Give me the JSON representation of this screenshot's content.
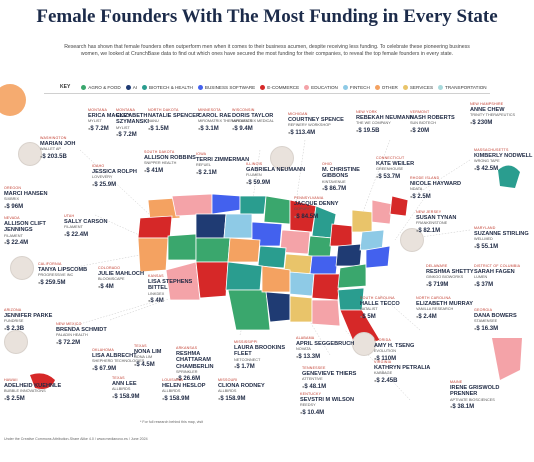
{
  "title": "Female Founders With The Most Funding in Every State",
  "subtitle": "Research has shown that female founders often outperform men when it comes to their business acumen, despite receiving less funding. To celebrate these pioneering business women, we looked at CrunchBase data to find out which ones have secured the most funding for their companies, to reveal the top female founders in every state.",
  "legend": {
    "key_label": "KEY",
    "items": [
      {
        "label": "AGRO & FOOD",
        "color": "#3aa76d"
      },
      {
        "label": "AI",
        "color": "#1f3b73"
      },
      {
        "label": "BIOTECH & HEALTH",
        "color": "#2a9d8f"
      },
      {
        "label": "BUSINESS SOFTWARE",
        "color": "#4361ee"
      },
      {
        "label": "E-COMMERCE",
        "color": "#d62828"
      },
      {
        "label": "EDUCATION",
        "color": "#f4a3a8"
      },
      {
        "label": "FINTECH",
        "color": "#8ecae6"
      },
      {
        "label": "OTHER",
        "color": "#f4a261"
      },
      {
        "label": "SERVICES",
        "color": "#e9c46a"
      },
      {
        "label": "TRANSPORTATION",
        "color": "#a8dadc"
      }
    ]
  },
  "founders": [
    {
      "id": "wa",
      "state": "Washington",
      "name": "Marian Joh",
      "company": "Wallet Ap",
      "amount": "$ 203.5B"
    },
    {
      "id": "mt1",
      "state": "Montana",
      "name": "Erica Mackey",
      "company": "Mylist",
      "amount": "$ 7.2M"
    },
    {
      "id": "mt2",
      "state": "Montana",
      "name": "Elizabeth Szymanski",
      "company": "Mylist",
      "amount": "$ 7.2M"
    },
    {
      "id": "nd",
      "state": "North Dakota",
      "name": "Natalie Spencer",
      "company": "Nanu",
      "amount": "$ 1.5M"
    },
    {
      "id": "mn",
      "state": "Minnesota",
      "name": "Carol Rae",
      "company": "Miromatrix Therapeutics",
      "amount": "$ 3.1M"
    },
    {
      "id": "wi",
      "state": "Wisconsin",
      "name": "Doris Taylor",
      "company": "Miromatrix Medical",
      "amount": "$ 9.4M"
    },
    {
      "id": "mi",
      "state": "Michigan",
      "name": "Courtney Spence",
      "company": "Refinery Workshop",
      "amount": "$ 113.4M"
    },
    {
      "id": "ny",
      "state": "New York",
      "name": "Rebekah Neumann",
      "company": "The WE Company",
      "amount": "$ 19.5B"
    },
    {
      "id": "vt",
      "state": "Vermont",
      "name": "Nash Roberts",
      "company": "Sun Biotech",
      "amount": "$ 20M"
    },
    {
      "id": "nh",
      "state": "New Hampshire",
      "name": "Anne Chew",
      "company": "Trinity Therapeutics",
      "amount": "$ 230M"
    },
    {
      "id": "or",
      "state": "Oregon",
      "name": "Marci Hansen",
      "company": "Sixbrix",
      "amount": "$ 96M"
    },
    {
      "id": "id",
      "state": "Idaho",
      "name": "Jessica Rolph",
      "company": "Lovevery",
      "amount": "$ 25.9M"
    },
    {
      "id": "sd",
      "state": "South Dakota",
      "name": "Allison Robbins",
      "company": "Snipper Health",
      "amount": "$ 41M"
    },
    {
      "id": "ia",
      "state": "Iowa",
      "name": "Terri Zimmerman",
      "company": "Refuel",
      "amount": "$ 2.1M"
    },
    {
      "id": "il",
      "state": "Illinois",
      "name": "Gabriela Neumann",
      "company": "Flumen",
      "amount": "$ 59.9M"
    },
    {
      "id": "oh",
      "state": "Ohio",
      "name": "M. Christine Gibbons",
      "company": "Kintavenue",
      "amount": "$ 86.7M"
    },
    {
      "id": "pa",
      "state": "Pennsylvania",
      "name": "Jacque Denny",
      "company": "Gopuff",
      "amount": "$ 84.5M"
    },
    {
      "id": "ct",
      "state": "Connecticut",
      "name": "Kate Weiler",
      "company": "Greenhouse",
      "amount": "$ 53.7M"
    },
    {
      "id": "ri",
      "state": "Rhode Island",
      "name": "Nicole Hayward",
      "company": "Ndata",
      "amount": "$ 2.5M"
    },
    {
      "id": "ma",
      "state": "Massachusetts",
      "name": "Kimberly Nodwell",
      "company": "Wrong Tape",
      "amount": "$ 42.5M"
    },
    {
      "id": "nv",
      "state": "Nevada",
      "name": "Allison Clift Jennings",
      "company": "Filament",
      "amount": "$ 22.4M"
    },
    {
      "id": "ut",
      "state": "Utah",
      "name": "Sally Carson",
      "company": "Filament",
      "amount": "$ 22.4M"
    },
    {
      "id": "nj",
      "state": "New Jersey",
      "name": "Susan Tynan",
      "company": "Frankenstone",
      "amount": "$ 82.1M"
    },
    {
      "id": "md",
      "state": "Maryland",
      "name": "Suzanne Stirling",
      "company": "Wellmed",
      "amount": "$ 55.1M"
    },
    {
      "id": "ca",
      "state": "California",
      "name": "Tanya Lipscomb",
      "company": "Progressive Inc",
      "amount": "$ 259.5M"
    },
    {
      "id": "co",
      "state": "Colorado",
      "name": "Julie Mahloch",
      "company": "Bloomscape",
      "amount": "$ 4M"
    },
    {
      "id": "ks",
      "state": "Kansas",
      "name": "Lisa Stephens Bittel",
      "company": "Linkdex",
      "amount": "$ 4M"
    },
    {
      "id": "de",
      "state": "Delaware",
      "name": "Reshma Shetty",
      "company": "Ginkgo Bioworks",
      "amount": "$ 719M"
    },
    {
      "id": "dc",
      "state": "District of Columbia",
      "name": "Sarah Fagen",
      "company": "Lumen",
      "amount": "$ 37M"
    },
    {
      "id": "az",
      "state": "Arizona",
      "name": "Jennifer Parke",
      "company": "Fundrise",
      "amount": "$ 2.3B"
    },
    {
      "id": "nm",
      "state": "New Mexico",
      "name": "Brenda Schmidt",
      "company": "Paladin Health",
      "amount": "$ 72.2M"
    },
    {
      "id": "sc",
      "state": "South Carolina",
      "name": "Halle Tecco",
      "company": "Natalist",
      "amount": "$ 5M"
    },
    {
      "id": "nc",
      "state": "North Carolina",
      "name": "Elizabeth Murray",
      "company": "Vanilla Research",
      "amount": "$ 2.4M"
    },
    {
      "id": "ga",
      "state": "Georgia",
      "name": "Dana Bowers",
      "company": "Stamensee",
      "amount": "$ 16.3M"
    },
    {
      "id": "ok",
      "state": "Oklahoma",
      "name": "Lisa Albrecht",
      "company": "Shepherd Technologies",
      "amount": "$ 67.9M"
    },
    {
      "id": "tx1",
      "state": "Texas",
      "name": "Nona Lim",
      "company": "Nona Lim",
      "amount": "$ 4.5M"
    },
    {
      "id": "ar",
      "state": "Arkansas",
      "name": "Reshma Chattaram Chamberlin",
      "company": "Sprinkler",
      "amount": "$ 26.6M"
    },
    {
      "id": "ms",
      "state": "Mississippi",
      "name": "Laura Brookins Fleet",
      "company": "Netconnect",
      "amount": "$ 1.7M"
    },
    {
      "id": "al",
      "state": "Alabama",
      "name": "April Seggebruch",
      "company": "Novata",
      "amount": "$ 13.3M"
    },
    {
      "id": "tn",
      "state": "Tennessee",
      "name": "Genevieve Thiers",
      "company": "Attentive",
      "amount": "$ 48.1M"
    },
    {
      "id": "fl",
      "state": "Florida",
      "name": "Amy H. Tseng",
      "company": "Evolution",
      "amount": "$ 110M"
    },
    {
      "id": "va",
      "state": "Virginia",
      "name": "Kathryn Petralia",
      "company": "Kabbage",
      "amount": "$ 2.45B"
    },
    {
      "id": "hi",
      "state": "Hawaii",
      "name": "Adelheid Kuehnle",
      "company": "Bubble Innovations",
      "amount": "$ 2.5M"
    },
    {
      "id": "tx2",
      "state": "Texas",
      "name": "Ann Lee",
      "company": "Allbirds",
      "amount": "$ 158.9M"
    },
    {
      "id": "la",
      "state": "Louisiana",
      "name": "Helen Heslop",
      "company": "Allbirds",
      "amount": "$ 158.9M"
    },
    {
      "id": "mo",
      "state": "Missouri",
      "name": "Cliona Rodney",
      "company": "Allbirds",
      "amount": "$ 158.9M"
    },
    {
      "id": "ky",
      "state": "Kentucky",
      "name": "Sevstri M Wilson",
      "company": "Reedsy",
      "amount": "$ 10.4M"
    },
    {
      "id": "me",
      "state": "Maine",
      "name": "Irene Griswold Prenner",
      "company": "Aptivate Biosciences",
      "amount": "$ 38.1M"
    }
  ],
  "footnote": "* For full research behind this map, visit",
  "footer": "Under the Creative Commons Attribution-Share Alike 4.0 / www.medianovo.es / June 2024"
}
